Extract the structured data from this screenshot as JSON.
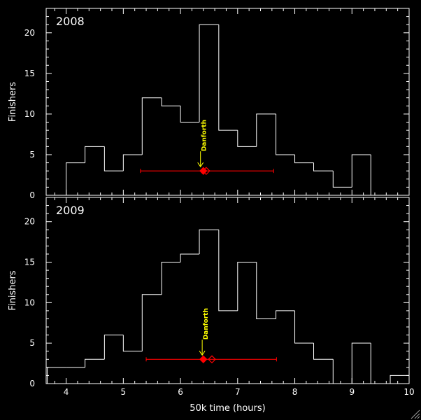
{
  "colors": {
    "background": "#000000",
    "axes": "#ffffff",
    "histogram": "#ffffff",
    "marker": "#ff0000",
    "annotation": "#ffff00"
  },
  "chart_data": [
    {
      "type": "histogram",
      "year_label": "2008",
      "ylabel": "Finishers",
      "xlabel": "",
      "xlim": [
        3.65,
        10.0
      ],
      "ylim": [
        0,
        23
      ],
      "xticks": [
        "4",
        "5",
        "6",
        "7",
        "8",
        "9",
        "10"
      ],
      "yticks": [
        "0",
        "5",
        "10",
        "15",
        "20"
      ],
      "bin_edges": [
        4.0,
        4.33,
        4.67,
        5.0,
        5.33,
        5.67,
        6.0,
        6.33,
        6.67,
        7.0,
        7.33,
        7.67,
        8.0,
        8.33,
        8.67,
        9.0,
        9.33
      ],
      "counts": [
        4,
        6,
        3,
        5,
        12,
        11,
        9,
        21,
        8,
        6,
        10,
        5,
        4,
        3,
        1,
        5
      ],
      "mean_marker": {
        "x": 6.4,
        "y": 3,
        "err_low": 5.3,
        "err_high": 7.63
      },
      "open_marker": {
        "x": 6.45,
        "y": 3
      },
      "annotation": {
        "text": "Danforth",
        "x": 6.35,
        "y": 3
      }
    },
    {
      "type": "histogram",
      "year_label": "2009",
      "ylabel": "Finishers",
      "xlabel": "50k time (hours)",
      "xlim": [
        3.65,
        10.0
      ],
      "ylim": [
        0,
        23
      ],
      "xticks": [
        "4",
        "5",
        "6",
        "7",
        "8",
        "9",
        "10"
      ],
      "yticks": [
        "0",
        "5",
        "10",
        "15",
        "20"
      ],
      "bin_edges": [
        3.67,
        4.0,
        4.33,
        4.67,
        5.0,
        5.33,
        5.67,
        6.0,
        6.33,
        6.67,
        7.0,
        7.33,
        7.67,
        8.0,
        8.33,
        8.67,
        9.0,
        9.33,
        9.67,
        10.0
      ],
      "counts": [
        2,
        2,
        3,
        6,
        4,
        11,
        15,
        16,
        19,
        9,
        15,
        8,
        9,
        5,
        3,
        0,
        5,
        0,
        1
      ],
      "mean_marker": {
        "x": 6.4,
        "y": 3,
        "err_low": 5.4,
        "err_high": 7.68
      },
      "open_marker": {
        "x": 6.55,
        "y": 3
      },
      "annotation": {
        "text": "Danforth",
        "x": 6.38,
        "y": 3
      }
    }
  ]
}
